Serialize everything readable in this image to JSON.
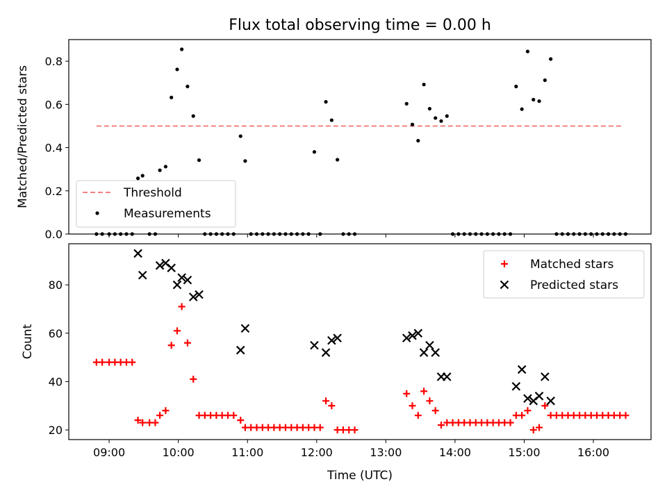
{
  "chart_data": [
    {
      "type": "scatter",
      "title": "Flux total observing time = 0.00 h",
      "xlabel": "",
      "ylabel": "Matched/Predicted stars",
      "xlim": [
        "08:25",
        "16:50"
      ],
      "ylim": [
        0,
        0.9
      ],
      "xticks": [
        "09:00",
        "10:00",
        "11:00",
        "12:00",
        "13:00",
        "14:00",
        "15:00",
        "16:00"
      ],
      "yticks": [
        "0.0",
        "0.2",
        "0.4",
        "0.6",
        "0.8"
      ],
      "threshold": {
        "name": "Threshold",
        "value": 0.5,
        "x_start": "08:49",
        "x_end": "16:25",
        "color": "#f08080"
      },
      "legend": {
        "placement": "lower-left",
        "entries": [
          "Threshold",
          "Measurements"
        ]
      },
      "grid": false,
      "series": [
        {
          "name": "Measurements",
          "marker": "dot",
          "color": "#000000",
          "points": [
            [
              "08:49",
              0
            ],
            [
              "08:54",
              0
            ],
            [
              "09:00",
              0
            ],
            [
              "09:05",
              0
            ],
            [
              "09:10",
              0
            ],
            [
              "09:15",
              0
            ],
            [
              "09:20",
              0
            ],
            [
              "09:25",
              0.258
            ],
            [
              "09:29",
              0.27
            ],
            [
              "09:35",
              0
            ],
            [
              "09:40",
              0
            ],
            [
              "09:44",
              0.295
            ],
            [
              "09:49",
              0.312
            ],
            [
              "09:54",
              0.632
            ],
            [
              "09:59",
              0.762
            ],
            [
              "10:03",
              0.855
            ],
            [
              "10:08",
              0.683
            ],
            [
              "10:13",
              0.546
            ],
            [
              "10:18",
              0.342
            ],
            [
              "10:23",
              0
            ],
            [
              "10:28",
              0
            ],
            [
              "10:33",
              0
            ],
            [
              "10:38",
              0
            ],
            [
              "10:43",
              0
            ],
            [
              "10:48",
              0
            ],
            [
              "10:54",
              0.453
            ],
            [
              "10:58",
              0.338
            ],
            [
              "11:03",
              0
            ],
            [
              "11:08",
              0
            ],
            [
              "11:13",
              0
            ],
            [
              "11:18",
              0
            ],
            [
              "11:23",
              0
            ],
            [
              "11:28",
              0
            ],
            [
              "11:33",
              0
            ],
            [
              "11:38",
              0
            ],
            [
              "11:43",
              0
            ],
            [
              "11:48",
              0
            ],
            [
              "11:53",
              0
            ],
            [
              "11:58",
              0.38
            ],
            [
              "12:03",
              0
            ],
            [
              "12:08",
              0.612
            ],
            [
              "12:13",
              0.527
            ],
            [
              "12:18",
              0.344
            ],
            [
              "12:23",
              0
            ],
            [
              "12:28",
              0
            ],
            [
              "12:33",
              0
            ],
            [
              "13:18",
              0.603
            ],
            [
              "13:23",
              0.507
            ],
            [
              "13:28",
              0.432
            ],
            [
              "13:33",
              0.692
            ],
            [
              "13:38",
              0.58
            ],
            [
              "13:43",
              0.537
            ],
            [
              "13:48",
              0.523
            ],
            [
              "13:53",
              0.546
            ],
            [
              "13:58",
              0
            ],
            [
              "14:03",
              0
            ],
            [
              "14:08",
              0
            ],
            [
              "14:13",
              0
            ],
            [
              "14:18",
              0
            ],
            [
              "14:23",
              0
            ],
            [
              "14:28",
              0
            ],
            [
              "14:33",
              0
            ],
            [
              "14:38",
              0
            ],
            [
              "14:43",
              0
            ],
            [
              "14:48",
              0
            ],
            [
              "14:53",
              0.683
            ],
            [
              "14:58",
              0.578
            ],
            [
              "15:03",
              0.845
            ],
            [
              "15:08",
              0.622
            ],
            [
              "15:13",
              0.615
            ],
            [
              "15:18",
              0.712
            ],
            [
              "15:23",
              0.81
            ],
            [
              "15:28",
              0
            ],
            [
              "15:33",
              0
            ],
            [
              "15:38",
              0
            ],
            [
              "15:43",
              0
            ],
            [
              "15:48",
              0
            ],
            [
              "15:53",
              0
            ],
            [
              "15:58",
              0
            ],
            [
              "16:03",
              0
            ],
            [
              "16:08",
              0
            ],
            [
              "16:13",
              0
            ],
            [
              "16:18",
              0
            ],
            [
              "16:23",
              0
            ],
            [
              "16:28",
              0
            ]
          ]
        }
      ]
    },
    {
      "type": "scatter",
      "title": "",
      "xlabel": "Time (UTC)",
      "ylabel": "Count",
      "xlim": [
        "08:25",
        "16:50"
      ],
      "ylim": [
        16,
        97
      ],
      "xticks": [
        "09:00",
        "10:00",
        "11:00",
        "12:00",
        "13:00",
        "14:00",
        "15:00",
        "16:00"
      ],
      "yticks": [
        "20",
        "40",
        "60",
        "80"
      ],
      "legend": {
        "placement": "upper-right",
        "entries": [
          "Matched stars",
          "Predicted stars"
        ]
      },
      "grid": false,
      "series": [
        {
          "name": "Matched stars",
          "marker": "plus",
          "color": "#ff0000",
          "points": [
            [
              "08:49",
              48
            ],
            [
              "08:54",
              48
            ],
            [
              "09:00",
              48
            ],
            [
              "09:05",
              48
            ],
            [
              "09:10",
              48
            ],
            [
              "09:15",
              48
            ],
            [
              "09:20",
              48
            ],
            [
              "09:25",
              24
            ],
            [
              "09:29",
              23
            ],
            [
              "09:35",
              23
            ],
            [
              "09:40",
              23
            ],
            [
              "09:44",
              26
            ],
            [
              "09:49",
              28
            ],
            [
              "09:54",
              55
            ],
            [
              "09:59",
              61
            ],
            [
              "10:03",
              71
            ],
            [
              "10:08",
              56
            ],
            [
              "10:13",
              41
            ],
            [
              "10:18",
              26
            ],
            [
              "10:23",
              26
            ],
            [
              "10:28",
              26
            ],
            [
              "10:33",
              26
            ],
            [
              "10:38",
              26
            ],
            [
              "10:43",
              26
            ],
            [
              "10:48",
              26
            ],
            [
              "10:54",
              24
            ],
            [
              "10:58",
              21
            ],
            [
              "11:03",
              21
            ],
            [
              "11:08",
              21
            ],
            [
              "11:13",
              21
            ],
            [
              "11:18",
              21
            ],
            [
              "11:23",
              21
            ],
            [
              "11:28",
              21
            ],
            [
              "11:33",
              21
            ],
            [
              "11:38",
              21
            ],
            [
              "11:43",
              21
            ],
            [
              "11:48",
              21
            ],
            [
              "11:53",
              21
            ],
            [
              "11:58",
              21
            ],
            [
              "12:03",
              21
            ],
            [
              "12:08",
              32
            ],
            [
              "12:13",
              30
            ],
            [
              "12:18",
              20
            ],
            [
              "12:23",
              20
            ],
            [
              "12:28",
              20
            ],
            [
              "12:33",
              20
            ],
            [
              "13:18",
              35
            ],
            [
              "13:23",
              30
            ],
            [
              "13:28",
              26
            ],
            [
              "13:33",
              36
            ],
            [
              "13:38",
              32
            ],
            [
              "13:43",
              28
            ],
            [
              "13:48",
              22
            ],
            [
              "13:53",
              23
            ],
            [
              "13:58",
              23
            ],
            [
              "14:03",
              23
            ],
            [
              "14:08",
              23
            ],
            [
              "14:13",
              23
            ],
            [
              "14:18",
              23
            ],
            [
              "14:23",
              23
            ],
            [
              "14:28",
              23
            ],
            [
              "14:33",
              23
            ],
            [
              "14:38",
              23
            ],
            [
              "14:43",
              23
            ],
            [
              "14:48",
              23
            ],
            [
              "14:53",
              26
            ],
            [
              "14:58",
              26
            ],
            [
              "15:03",
              28
            ],
            [
              "15:08",
              20
            ],
            [
              "15:13",
              21
            ],
            [
              "15:18",
              30
            ],
            [
              "15:23",
              26
            ],
            [
              "15:28",
              26
            ],
            [
              "15:33",
              26
            ],
            [
              "15:38",
              26
            ],
            [
              "15:43",
              26
            ],
            [
              "15:48",
              26
            ],
            [
              "15:53",
              26
            ],
            [
              "15:58",
              26
            ],
            [
              "16:03",
              26
            ],
            [
              "16:08",
              26
            ],
            [
              "16:13",
              26
            ],
            [
              "16:18",
              26
            ],
            [
              "16:23",
              26
            ],
            [
              "16:28",
              26
            ]
          ]
        },
        {
          "name": "Predicted stars",
          "marker": "x",
          "color": "#000000",
          "points": [
            [
              "09:25",
              93
            ],
            [
              "09:29",
              84
            ],
            [
              "09:44",
              88
            ],
            [
              "09:49",
              89
            ],
            [
              "09:54",
              87
            ],
            [
              "09:59",
              80
            ],
            [
              "10:03",
              83
            ],
            [
              "10:08",
              82
            ],
            [
              "10:13",
              75
            ],
            [
              "10:18",
              76
            ],
            [
              "10:54",
              53
            ],
            [
              "10:58",
              62
            ],
            [
              "11:58",
              55
            ],
            [
              "12:08",
              52
            ],
            [
              "12:13",
              57
            ],
            [
              "12:18",
              58
            ],
            [
              "13:18",
              58
            ],
            [
              "13:23",
              59
            ],
            [
              "13:28",
              60
            ],
            [
              "13:33",
              52
            ],
            [
              "13:38",
              55
            ],
            [
              "13:43",
              52
            ],
            [
              "13:48",
              42
            ],
            [
              "13:53",
              42
            ],
            [
              "14:53",
              38
            ],
            [
              "14:58",
              45
            ],
            [
              "15:03",
              33
            ],
            [
              "15:08",
              32
            ],
            [
              "15:13",
              34
            ],
            [
              "15:18",
              42
            ],
            [
              "15:23",
              32
            ]
          ]
        }
      ]
    }
  ]
}
